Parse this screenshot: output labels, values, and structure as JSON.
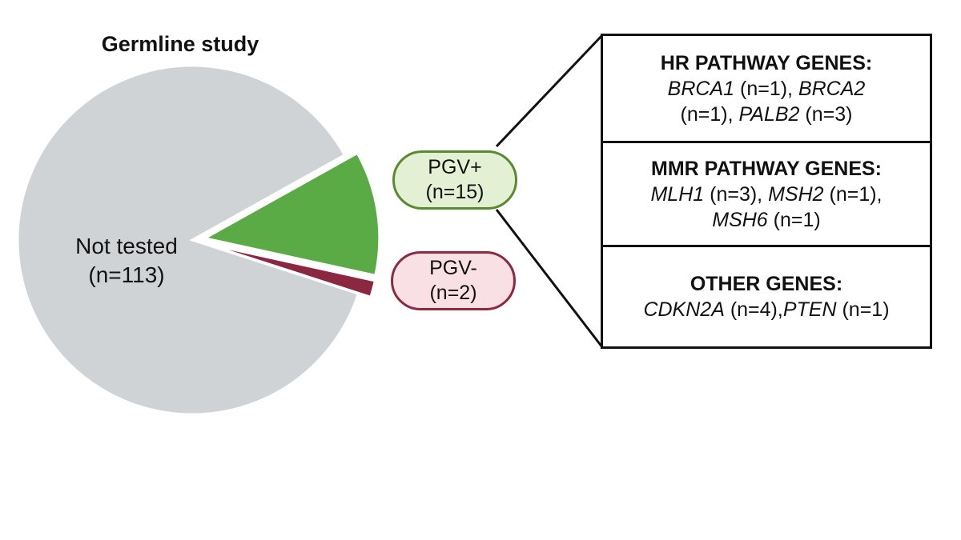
{
  "chart_data": {
    "type": "pie",
    "title": "Germline study",
    "slices": [
      {
        "label": "Not tested",
        "count_label": "(n=113)",
        "value": 113,
        "color": "#d0d3d6"
      },
      {
        "label": "PGV+",
        "count_label": "(n=15)",
        "value": 15,
        "color": "#5aab46",
        "exploded": true
      },
      {
        "label": "PGV-",
        "count_label": "(n=2)",
        "value": 2,
        "color": "#8c2742",
        "exploded": true
      }
    ],
    "callout_sections": [
      {
        "heading": "HR PATHWAY GENES:",
        "lines": [
          [
            {
              "t": "BRCA1",
              "i": true
            },
            {
              "t": " (n=1), "
            },
            {
              "t": "BRCA2",
              "i": true
            }
          ],
          [
            {
              "t": "(n=1), "
            },
            {
              "t": "PALB2",
              "i": true
            },
            {
              "t": " (n=3)"
            }
          ]
        ]
      },
      {
        "heading": "MMR PATHWAY GENES:",
        "lines": [
          [
            {
              "t": "MLH1",
              "i": true
            },
            {
              "t": " (n=3), "
            },
            {
              "t": "MSH2",
              "i": true
            },
            {
              "t": " (n=1),"
            }
          ],
          [
            {
              "t": "MSH6",
              "i": true
            },
            {
              "t": " (n=1)"
            }
          ]
        ]
      },
      {
        "heading": "OTHER GENES:",
        "lines": [
          [
            {
              "t": "CDKN2A",
              "i": true
            },
            {
              "t": " (n=4),"
            },
            {
              "t": "PTEN",
              "i": true
            },
            {
              "t": " (n=1)"
            }
          ]
        ]
      }
    ]
  }
}
